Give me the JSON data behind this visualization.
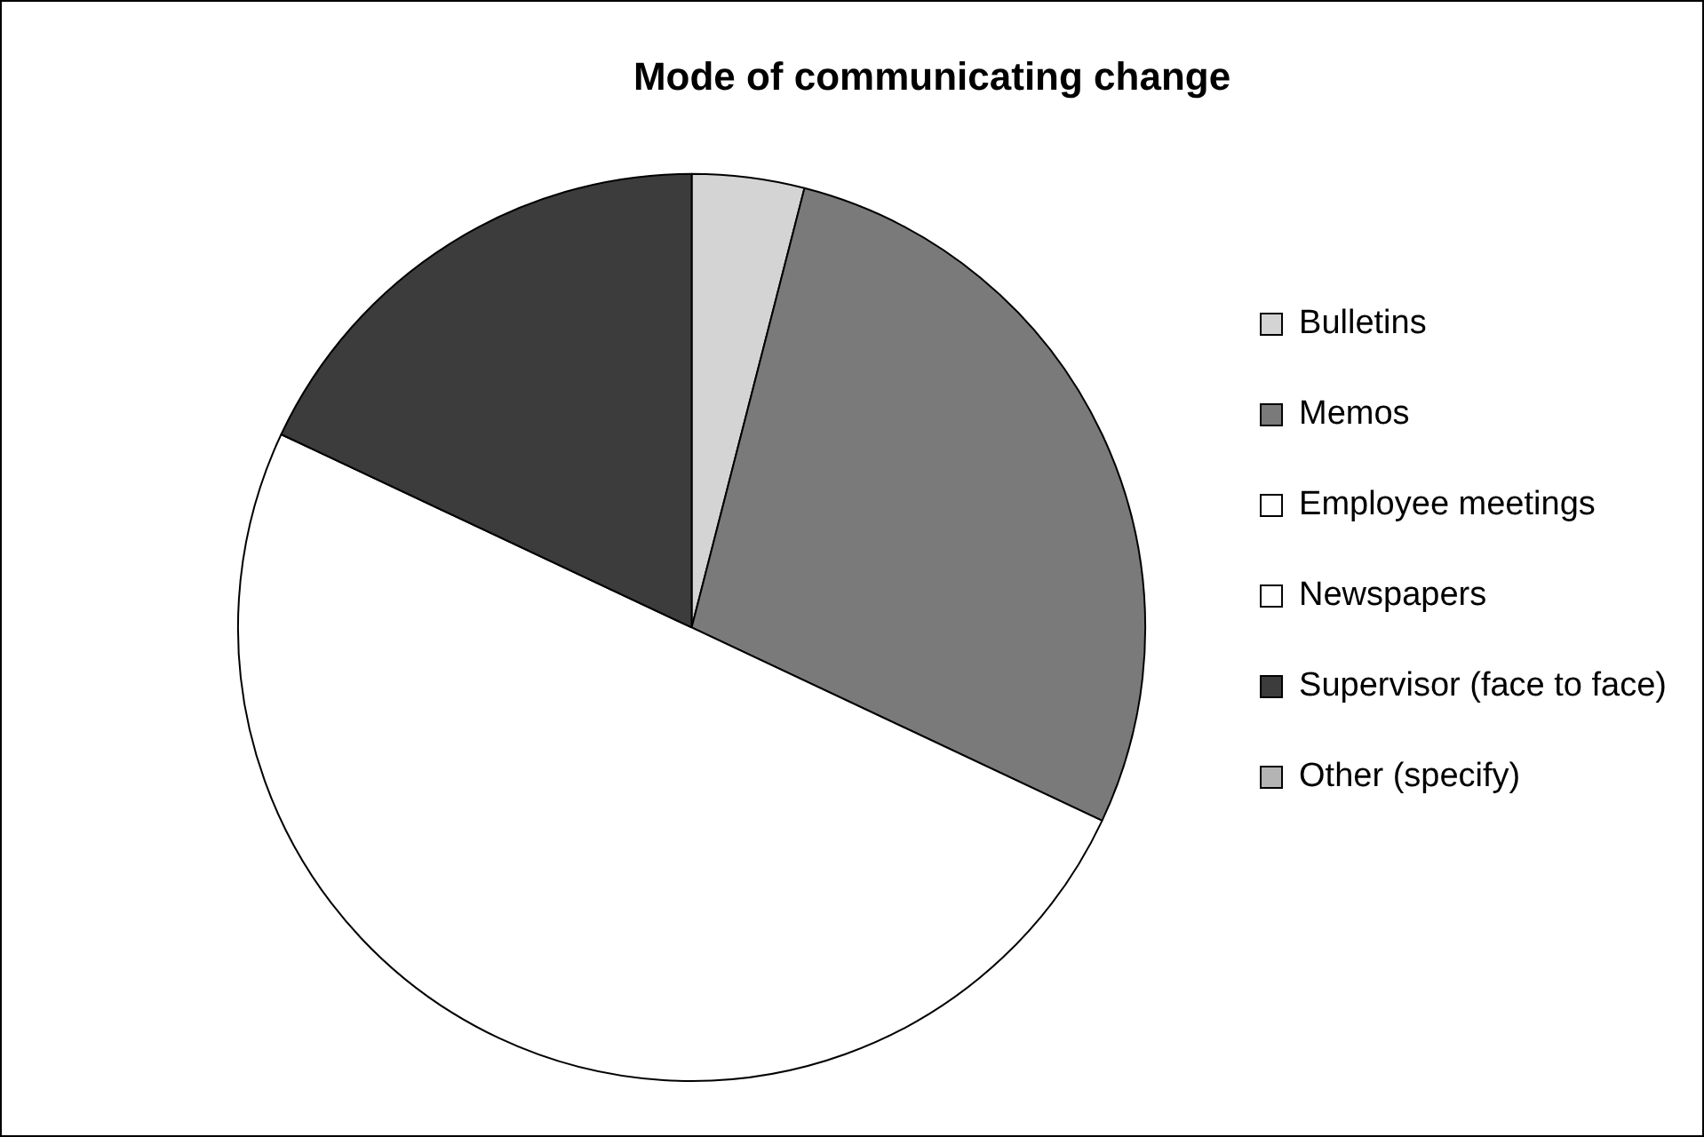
{
  "chart_data": {
    "type": "pie",
    "title": "Mode of communicating change",
    "categories": [
      "Bulletins",
      "Memos",
      "Employee meetings",
      "Newspapers",
      "Supervisor (face to face)",
      "Other (specify)"
    ],
    "values": [
      4,
      28,
      50,
      0,
      18,
      0
    ],
    "colors": [
      "#d4d4d4",
      "#7a7a7a",
      "#ffffff",
      "#ffffff",
      "#3c3c3c",
      "#b4b4b4"
    ],
    "legend": "right"
  }
}
